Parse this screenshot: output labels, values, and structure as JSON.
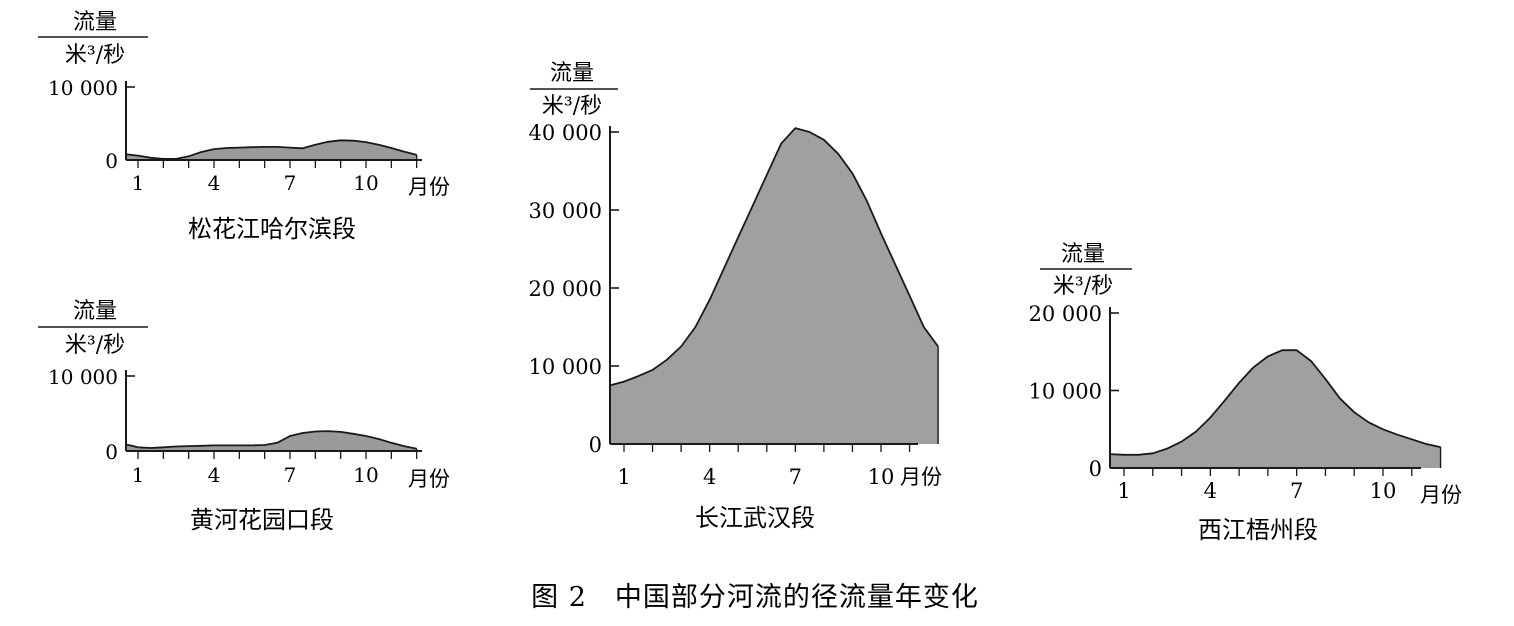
{
  "figure_caption": "图 2　中国部分河流的径流量年变化",
  "chart_data": [
    {
      "id": "songhua",
      "type": "area",
      "caption": "松花江哈尔滨段",
      "ylabel_top": "流量",
      "ylabel_bottom": "米³/秒",
      "xunit": "月份",
      "ylim": [
        0,
        10000
      ],
      "yticks": [
        0,
        10000
      ],
      "ytick_labels": [
        "0",
        "10 000"
      ],
      "xticks": [
        1,
        4,
        7,
        10
      ],
      "x": [
        0.5,
        1,
        1.5,
        2,
        2.5,
        3,
        3.5,
        4,
        4.5,
        5,
        5.5,
        6,
        6.5,
        7,
        7.5,
        8,
        8.5,
        9,
        9.5,
        10,
        10.5,
        11,
        11.5,
        12
      ],
      "values": [
        800,
        600,
        300,
        150,
        150,
        500,
        1100,
        1500,
        1650,
        1700,
        1750,
        1800,
        1800,
        1700,
        1600,
        2100,
        2500,
        2700,
        2650,
        2450,
        2100,
        1650,
        1150,
        700
      ],
      "fill": "#9a9a9a"
    },
    {
      "id": "huanghe",
      "type": "area",
      "caption": "黄河花园口段",
      "ylabel_top": "流量",
      "ylabel_bottom": "米³/秒",
      "xunit": "月份",
      "ylim": [
        0,
        10000
      ],
      "yticks": [
        0,
        10000
      ],
      "ytick_labels": [
        "0",
        "10 000"
      ],
      "xticks": [
        1,
        4,
        7,
        10
      ],
      "x": [
        0.5,
        1,
        1.5,
        2,
        2.5,
        3,
        3.5,
        4,
        4.5,
        5,
        5.5,
        6,
        6.5,
        7,
        7.5,
        8,
        8.5,
        9,
        9.5,
        10,
        10.5,
        11,
        11.5,
        12
      ],
      "values": [
        900,
        500,
        400,
        500,
        600,
        650,
        700,
        750,
        750,
        750,
        750,
        800,
        1100,
        2000,
        2400,
        2600,
        2650,
        2550,
        2300,
        2000,
        1600,
        1100,
        650,
        300
      ],
      "fill": "#9a9a9a"
    },
    {
      "id": "changjiang",
      "type": "area",
      "caption": "长江武汉段",
      "ylabel_top": "流量",
      "ylabel_bottom": "米³/秒",
      "xunit": "月份",
      "ylim": [
        0,
        40000
      ],
      "yticks": [
        0,
        10000,
        20000,
        30000,
        40000
      ],
      "ytick_labels": [
        "0",
        "10 000",
        "20 000",
        "30 000",
        "40 000"
      ],
      "xticks": [
        1,
        4,
        7,
        10
      ],
      "x": [
        0.5,
        1,
        1.5,
        2,
        2.5,
        3,
        3.5,
        4,
        4.5,
        5,
        5.5,
        6,
        6.5,
        7,
        7.5,
        8,
        8.5,
        9,
        9.5,
        10,
        10.5,
        11,
        11.5,
        12
      ],
      "values": [
        7500,
        8000,
        8700,
        9500,
        10800,
        12500,
        15000,
        18500,
        22500,
        26500,
        30500,
        34500,
        38500,
        40500,
        40000,
        39000,
        37200,
        34700,
        31200,
        27000,
        23000,
        19000,
        15000,
        12500
      ],
      "fill": "#a0a0a0"
    },
    {
      "id": "xijiang",
      "type": "area",
      "caption": "西江梧州段",
      "ylabel_top": "流量",
      "ylabel_bottom": "米³/秒",
      "xunit": "月份",
      "ylim": [
        0,
        20000
      ],
      "yticks": [
        0,
        10000,
        20000
      ],
      "ytick_labels": [
        "0",
        "10 000",
        "20 000"
      ],
      "xticks": [
        1,
        4,
        7,
        10
      ],
      "x": [
        0.5,
        1,
        1.5,
        2,
        2.5,
        3,
        3.5,
        4,
        4.5,
        5,
        5.5,
        6,
        6.5,
        7,
        7.5,
        8,
        8.5,
        9,
        9.5,
        10,
        10.5,
        11,
        11.5,
        12
      ],
      "values": [
        1800,
        1700,
        1700,
        1900,
        2500,
        3400,
        4700,
        6500,
        8700,
        11000,
        13000,
        14400,
        15200,
        15200,
        13800,
        11500,
        9000,
        7200,
        5900,
        5000,
        4300,
        3700,
        3100,
        2700
      ],
      "fill": "#a0a0a0"
    }
  ]
}
